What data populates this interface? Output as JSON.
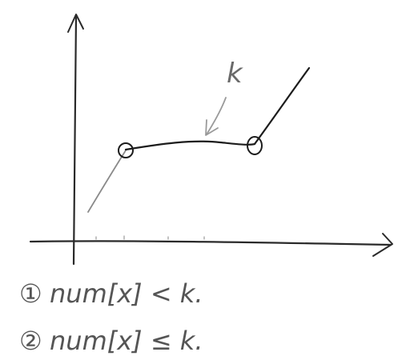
{
  "colors": {
    "background": "#ffffff",
    "ink": "#1c1c1c",
    "ink_light": "#8a8a8a"
  },
  "annotation_label": "k",
  "conditions": [
    {
      "marker": "①",
      "text": "num[x] < k."
    },
    {
      "marker": "②",
      "text": "num[x] ≤ k."
    }
  ]
}
